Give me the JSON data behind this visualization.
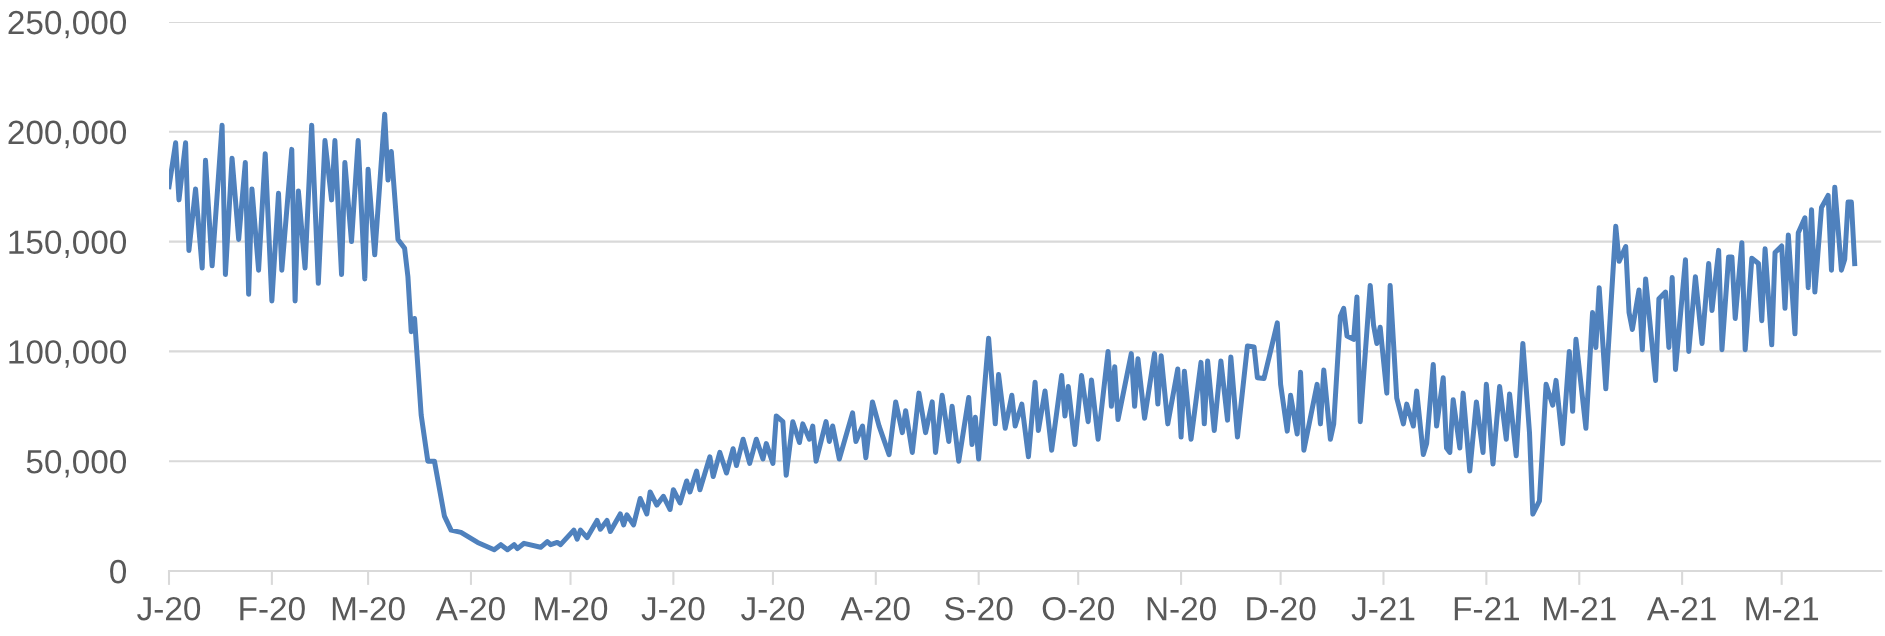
{
  "chart_data": {
    "type": "line",
    "xlim": [
      "2020-01-01",
      "2021-05-31"
    ],
    "xticks": [
      {
        "value": "2020-01-01",
        "label": "J-20"
      },
      {
        "value": "2020-02-01",
        "label": "F-20"
      },
      {
        "value": "2020-03-01",
        "label": "M-20"
      },
      {
        "value": "2020-04-01",
        "label": "A-20"
      },
      {
        "value": "2020-05-01",
        "label": "M-20"
      },
      {
        "value": "2020-06-01",
        "label": "J-20"
      },
      {
        "value": "2020-07-01",
        "label": "J-20"
      },
      {
        "value": "2020-08-01",
        "label": "A-20"
      },
      {
        "value": "2020-09-01",
        "label": "S-20"
      },
      {
        "value": "2020-10-01",
        "label": "O-20"
      },
      {
        "value": "2020-11-01",
        "label": "N-20"
      },
      {
        "value": "2020-12-01",
        "label": "D-20"
      },
      {
        "value": "2021-01-01",
        "label": "J-21"
      },
      {
        "value": "2021-02-01",
        "label": "F-21"
      },
      {
        "value": "2021-03-01",
        "label": "M-21"
      },
      {
        "value": "2021-04-01",
        "label": "A-21"
      },
      {
        "value": "2021-05-01",
        "label": "M-21"
      }
    ],
    "ylim": [
      0,
      250000
    ],
    "yticks": [
      {
        "value": 0,
        "label": "0"
      },
      {
        "value": 50000,
        "label": "50,000"
      },
      {
        "value": 100000,
        "label": "100,000"
      },
      {
        "value": 150000,
        "label": "150,000"
      },
      {
        "value": 200000,
        "label": "200,000"
      },
      {
        "value": 250000,
        "label": "250,000"
      }
    ],
    "grid": "y",
    "legend": false,
    "marker": "none",
    "line_style": "solid",
    "x": [
      "2020-01-01",
      "2020-01-03",
      "2020-01-04",
      "2020-01-06",
      "2020-01-07",
      "2020-01-09",
      "2020-01-11",
      "2020-01-12",
      "2020-01-14",
      "2020-01-17",
      "2020-01-18",
      "2020-01-20",
      "2020-01-22",
      "2020-01-24",
      "2020-01-25",
      "2020-01-26",
      "2020-01-28",
      "2020-01-30",
      "2020-02-01",
      "2020-02-03",
      "2020-02-04",
      "2020-02-07",
      "2020-02-08",
      "2020-02-09",
      "2020-02-11",
      "2020-02-13",
      "2020-02-15",
      "2020-02-17",
      "2020-02-19",
      "2020-02-20",
      "2020-02-22",
      "2020-02-23",
      "2020-02-25",
      "2020-02-27",
      "2020-02-29",
      "2020-03-01",
      "2020-03-03",
      "2020-03-06",
      "2020-03-07",
      "2020-03-08",
      "2020-03-10",
      "2020-03-12",
      "2020-03-13",
      "2020-03-14",
      "2020-03-15",
      "2020-03-17",
      "2020-03-19",
      "2020-03-21",
      "2020-03-24",
      "2020-03-26",
      "2020-03-29",
      "2020-04-03",
      "2020-04-08",
      "2020-04-10",
      "2020-04-12",
      "2020-04-14",
      "2020-04-15",
      "2020-04-17",
      "2020-04-22",
      "2020-04-24",
      "2020-04-25",
      "2020-04-27",
      "2020-04-28",
      "2020-05-02",
      "2020-05-03",
      "2020-05-04",
      "2020-05-06",
      "2020-05-09",
      "2020-05-10",
      "2020-05-12",
      "2020-05-13",
      "2020-05-16",
      "2020-05-17",
      "2020-05-18",
      "2020-05-20",
      "2020-05-22",
      "2020-05-24",
      "2020-05-25",
      "2020-05-27",
      "2020-05-29",
      "2020-05-31",
      "2020-06-01",
      "2020-06-03",
      "2020-06-05",
      "2020-06-06",
      "2020-06-08",
      "2020-06-09",
      "2020-06-12",
      "2020-06-13",
      "2020-06-15",
      "2020-06-17",
      "2020-06-19",
      "2020-06-20",
      "2020-06-22",
      "2020-06-24",
      "2020-06-26",
      "2020-06-28",
      "2020-06-29",
      "2020-07-01",
      "2020-07-02",
      "2020-07-04",
      "2020-07-05",
      "2020-07-07",
      "2020-07-09",
      "2020-07-10",
      "2020-07-12",
      "2020-07-13",
      "2020-07-14",
      "2020-07-17",
      "2020-07-18",
      "2020-07-19",
      "2020-07-21",
      "2020-07-25",
      "2020-07-26",
      "2020-07-28",
      "2020-07-29",
      "2020-07-31",
      "2020-08-02",
      "2020-08-05",
      "2020-08-07",
      "2020-08-09",
      "2020-08-10",
      "2020-08-12",
      "2020-08-14",
      "2020-08-16",
      "2020-08-18",
      "2020-08-19",
      "2020-08-21",
      "2020-08-23",
      "2020-08-24",
      "2020-08-26",
      "2020-08-29",
      "2020-08-30",
      "2020-08-31",
      "2020-09-01",
      "2020-09-04",
      "2020-09-06",
      "2020-09-07",
      "2020-09-09",
      "2020-09-11",
      "2020-09-12",
      "2020-09-14",
      "2020-09-16",
      "2020-09-18",
      "2020-09-19",
      "2020-09-21",
      "2020-09-23",
      "2020-09-26",
      "2020-09-27",
      "2020-09-28",
      "2020-09-30",
      "2020-10-02",
      "2020-10-04",
      "2020-10-05",
      "2020-10-07",
      "2020-10-10",
      "2020-10-11",
      "2020-10-12",
      "2020-10-13",
      "2020-10-17",
      "2020-10-18",
      "2020-10-19",
      "2020-10-21",
      "2020-10-24",
      "2020-10-25",
      "2020-10-26",
      "2020-10-28",
      "2020-10-31",
      "2020-11-01",
      "2020-11-02",
      "2020-11-04",
      "2020-11-07",
      "2020-11-08",
      "2020-11-09",
      "2020-11-11",
      "2020-11-13",
      "2020-11-15",
      "2020-11-16",
      "2020-11-18",
      "2020-11-21",
      "2020-11-23",
      "2020-11-24",
      "2020-11-26",
      "2020-11-30",
      "2020-12-01",
      "2020-12-03",
      "2020-12-04",
      "2020-12-06",
      "2020-12-07",
      "2020-12-08",
      "2020-12-12",
      "2020-12-13",
      "2020-12-14",
      "2020-12-16",
      "2020-12-17",
      "2020-12-19",
      "2020-12-20",
      "2020-12-21",
      "2020-12-23",
      "2020-12-24",
      "2020-12-25",
      "2020-12-28",
      "2020-12-29",
      "2020-12-30",
      "2020-12-31",
      "2021-01-02",
      "2021-01-03",
      "2021-01-05",
      "2021-01-07",
      "2021-01-08",
      "2021-01-10",
      "2021-01-11",
      "2021-01-13",
      "2021-01-14",
      "2021-01-16",
      "2021-01-17",
      "2021-01-19",
      "2021-01-20",
      "2021-01-21",
      "2021-01-22",
      "2021-01-24",
      "2021-01-25",
      "2021-01-27",
      "2021-01-29",
      "2021-01-31",
      "2021-02-01",
      "2021-02-03",
      "2021-02-05",
      "2021-02-07",
      "2021-02-08",
      "2021-02-10",
      "2021-02-12",
      "2021-02-14",
      "2021-02-15",
      "2021-02-17",
      "2021-02-19",
      "2021-02-21",
      "2021-02-22",
      "2021-02-24",
      "2021-02-26",
      "2021-02-27",
      "2021-02-28",
      "2021-03-03",
      "2021-03-05",
      "2021-03-06",
      "2021-03-07",
      "2021-03-09",
      "2021-03-12",
      "2021-03-13",
      "2021-03-15",
      "2021-03-16",
      "2021-03-17",
      "2021-03-19",
      "2021-03-20",
      "2021-03-21",
      "2021-03-24",
      "2021-03-25",
      "2021-03-27",
      "2021-03-28",
      "2021-03-29",
      "2021-03-30",
      "2021-04-02",
      "2021-04-03",
      "2021-04-05",
      "2021-04-07",
      "2021-04-09",
      "2021-04-10",
      "2021-04-12",
      "2021-04-13",
      "2021-04-15",
      "2021-04-16",
      "2021-04-17",
      "2021-04-19",
      "2021-04-20",
      "2021-04-22",
      "2021-04-24",
      "2021-04-25",
      "2021-04-26",
      "2021-04-28",
      "2021-04-29",
      "2021-05-01",
      "2021-05-02",
      "2021-05-03",
      "2021-05-05",
      "2021-05-06",
      "2021-05-08",
      "2021-05-09",
      "2021-05-10",
      "2021-05-11",
      "2021-05-13",
      "2021-05-15",
      "2021-05-16",
      "2021-05-17",
      "2021-05-19",
      "2021-05-20",
      "2021-05-21",
      "2021-05-22",
      "2021-05-23"
    ],
    "series": [
      {
        "color": "#4f81bd",
        "values": [
          175000,
          195000,
          169000,
          195000,
          146000,
          174000,
          138000,
          187000,
          139000,
          203000,
          135000,
          188000,
          151000,
          186000,
          126000,
          174000,
          137000,
          190000,
          123000,
          172000,
          137000,
          192000,
          123000,
          173000,
          138000,
          203000,
          131000,
          196000,
          169000,
          196000,
          135000,
          186000,
          150000,
          196000,
          133000,
          183000,
          144000,
          208000,
          178000,
          191000,
          151000,
          147000,
          134000,
          109000,
          115000,
          71000,
          50000,
          50000,
          25000,
          18600,
          17600,
          13000,
          9700,
          12000,
          9700,
          12000,
          10200,
          12600,
          10800,
          13400,
          12000,
          13000,
          12000,
          18600,
          14500,
          18600,
          15200,
          23000,
          19000,
          23000,
          18000,
          26000,
          21000,
          25600,
          21000,
          33000,
          26000,
          36000,
          30000,
          34000,
          28000,
          37000,
          31000,
          41000,
          36000,
          45500,
          37000,
          52000,
          43000,
          54000,
          44600,
          55700,
          48000,
          60000,
          49000,
          60000,
          51000,
          58000,
          49000,
          70600,
          68000,
          43600,
          68000,
          58500,
          67000,
          60000,
          66000,
          50000,
          68000,
          59000,
          66000,
          51000,
          72000,
          59000,
          66000,
          51600,
          77000,
          66000,
          53000,
          77000,
          63000,
          73000,
          54000,
          81000,
          63000,
          77000,
          54000,
          80000,
          59000,
          75000,
          50000,
          79000,
          57600,
          70000,
          51000,
          106000,
          67000,
          89500,
          65000,
          80000,
          66000,
          76000,
          52000,
          86000,
          64000,
          82000,
          55000,
          89000,
          70600,
          84000,
          57600,
          89000,
          68000,
          87000,
          60000,
          100000,
          75000,
          93000,
          69000,
          99000,
          75000,
          96600,
          69600,
          99000,
          76000,
          98000,
          67000,
          92000,
          61000,
          91000,
          60000,
          95000,
          67000,
          95600,
          64000,
          95600,
          68700,
          97500,
          61000,
          102500,
          102000,
          88000,
          87700,
          113000,
          85000,
          63700,
          80000,
          62400,
          90500,
          55000,
          85000,
          67000,
          91500,
          60000,
          67000,
          116000,
          119600,
          107000,
          105500,
          124800,
          68000,
          130000,
          112000,
          103600,
          111000,
          81000,
          130000,
          78700,
          67000,
          76000,
          66000,
          82000,
          53000,
          58000,
          94000,
          66000,
          88000,
          56000,
          54000,
          78000,
          56000,
          81000,
          45500,
          77000,
          54000,
          85000,
          48700,
          84000,
          60000,
          80600,
          52500,
          103600,
          63000,
          25900,
          31900,
          85000,
          75500,
          86800,
          58000,
          100000,
          72700,
          105500,
          65000,
          117700,
          101800,
          129000,
          83000,
          157000,
          141000,
          147700,
          117700,
          110000,
          128000,
          100800,
          133000,
          86800,
          124000,
          127000,
          101800,
          133600,
          91800,
          141700,
          100000,
          134000,
          103600,
          140000,
          118600,
          146000,
          100800,
          143000,
          143000,
          115000,
          149500,
          100800,
          142400,
          140000,
          114000,
          146700,
          103000,
          145000,
          148000,
          119600,
          153000,
          108000,
          154000,
          160800,
          129000,
          164500,
          127000,
          165500,
          171000,
          137000,
          174800,
          137000,
          142000,
          168000,
          168000,
          140000
        ]
      }
    ]
  }
}
